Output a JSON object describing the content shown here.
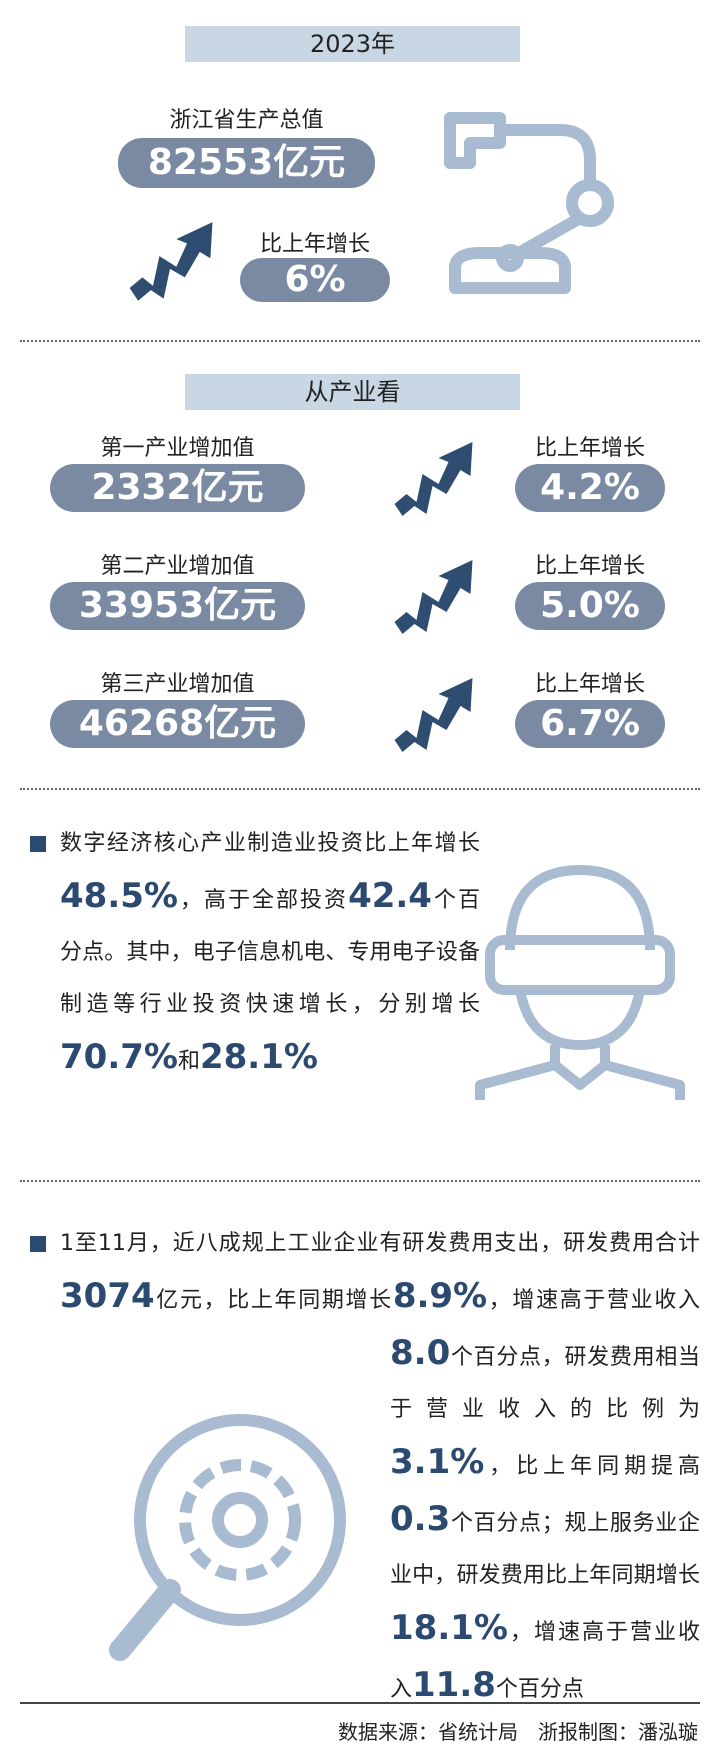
{
  "header": {
    "year": "2023年",
    "gdp_label": "浙江省生产总值",
    "gdp_value": "82553亿元",
    "growth_label": "比上年增长",
    "growth_value": "6%"
  },
  "industry": {
    "title": "从产业看",
    "rows": [
      {
        "label": "第一产业增加值",
        "value": "2332亿元",
        "growth_label": "比上年增长",
        "growth": "4.2%"
      },
      {
        "label": "第二产业增加值",
        "value": "33953亿元",
        "growth_label": "比上年增长",
        "growth": "5.0%"
      },
      {
        "label": "第三产业增加值",
        "value": "46268亿元",
        "growth_label": "比上年增长",
        "growth": "6.7%"
      }
    ]
  },
  "paragraphs": [
    [
      "数字经济核心产业制造业投资比上年增长",
      "48.5%",
      "，高于全部投资",
      "42.4",
      "个百分点。其中，电子信息机电、专用电子设备制造等行业投资快速增长，分别增长",
      "70.7%",
      "和",
      "28.1%"
    ],
    [
      "1至11月，近八成规上工业企业有研发费用支出，研发费用合计",
      "3074",
      "亿元，比上年同期增长",
      "8.9%",
      "，增速高于营业收入",
      "8.0",
      "个百分点，研发费用相当于营业收入的比例为",
      "3.1%",
      "，比上年同期提高",
      "0.3",
      "个百分点；规上服务业企业中，研发费用比上年同期增长",
      "18.1%",
      "，增速高于营业收入",
      "11.8",
      "个百分点"
    ]
  ],
  "footer": {
    "source": "数据来源：省统计局",
    "credit": "浙报制图：潘泓璇"
  }
}
